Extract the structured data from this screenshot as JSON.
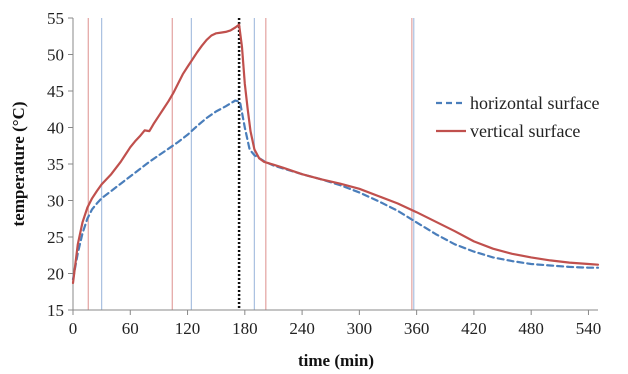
{
  "chart_data": {
    "type": "line",
    "title": "",
    "xlabel": "time (min)",
    "ylabel": "temperature (°C)",
    "xlim": [
      0,
      550
    ],
    "ylim": [
      15,
      55
    ],
    "xticks": [
      0,
      60,
      120,
      180,
      240,
      300,
      360,
      420,
      480,
      540
    ],
    "yticks": [
      15,
      20,
      25,
      30,
      35,
      40,
      45,
      50,
      55
    ],
    "grid": false,
    "legend_position": "right",
    "series": [
      {
        "name": "horizontal surface",
        "color": "#4a7ebb",
        "dash": "dashed",
        "x": [
          0,
          5,
          10,
          15,
          20,
          25,
          30,
          40,
          50,
          60,
          70,
          80,
          90,
          100,
          110,
          120,
          130,
          140,
          150,
          160,
          165,
          170,
          175,
          180,
          185,
          190,
          200,
          210,
          220,
          240,
          260,
          280,
          300,
          320,
          340,
          360,
          380,
          400,
          420,
          440,
          460,
          480,
          500,
          520,
          540,
          550
        ],
        "y": [
          19.2,
          22.8,
          25.5,
          27.5,
          28.8,
          29.6,
          30.3,
          31.3,
          32.3,
          33.3,
          34.3,
          35.3,
          36.2,
          37.1,
          38.0,
          39.0,
          40.2,
          41.3,
          42.2,
          42.9,
          43.3,
          43.7,
          43.5,
          40.0,
          37.0,
          36.2,
          35.4,
          34.8,
          34.4,
          33.6,
          32.9,
          32.1,
          31.1,
          29.9,
          28.6,
          27.0,
          25.4,
          24.0,
          23.0,
          22.2,
          21.7,
          21.3,
          21.1,
          20.9,
          20.8,
          20.8
        ]
      },
      {
        "name": "vertical surface",
        "color": "#c0504d",
        "dash": "solid",
        "x": [
          0,
          5,
          10,
          15,
          20,
          25,
          30,
          40,
          50,
          55,
          60,
          65,
          70,
          75,
          80,
          85,
          90,
          95,
          100,
          105,
          110,
          115,
          120,
          125,
          130,
          135,
          140,
          145,
          150,
          155,
          160,
          165,
          170,
          174,
          177,
          180,
          183,
          186,
          190,
          195,
          200,
          210,
          220,
          240,
          260,
          280,
          300,
          320,
          340,
          360,
          380,
          400,
          420,
          440,
          460,
          480,
          500,
          520,
          540,
          550
        ],
        "y": [
          18.7,
          24.0,
          27.0,
          29.0,
          30.3,
          31.3,
          32.2,
          33.6,
          35.3,
          36.3,
          37.3,
          38.1,
          38.8,
          39.6,
          39.5,
          40.6,
          41.6,
          42.6,
          43.6,
          44.7,
          46.0,
          47.3,
          48.3,
          49.3,
          50.3,
          51.2,
          52.0,
          52.6,
          52.9,
          53.0,
          53.1,
          53.3,
          53.7,
          54.1,
          51.0,
          46.0,
          42.5,
          39.5,
          37.0,
          35.8,
          35.3,
          34.9,
          34.5,
          33.6,
          32.9,
          32.3,
          31.6,
          30.6,
          29.6,
          28.4,
          27.1,
          25.8,
          24.4,
          23.4,
          22.7,
          22.2,
          21.8,
          21.5,
          21.3,
          21.2
        ]
      }
    ],
    "vertical_markers": [
      {
        "x": 16,
        "color": "#e3a2a0"
      },
      {
        "x": 30,
        "color": "#a9c0e0"
      },
      {
        "x": 104,
        "color": "#e3a2a0"
      },
      {
        "x": 124,
        "color": "#a9c0e0"
      },
      {
        "x": 174,
        "color": "#111111",
        "dotted": true
      },
      {
        "x": 190,
        "color": "#a9c0e0"
      },
      {
        "x": 202,
        "color": "#e3a2a0"
      },
      {
        "x": 355,
        "color": "#e3a2a0"
      },
      {
        "x": 357,
        "color": "#a9c0e0"
      }
    ]
  }
}
